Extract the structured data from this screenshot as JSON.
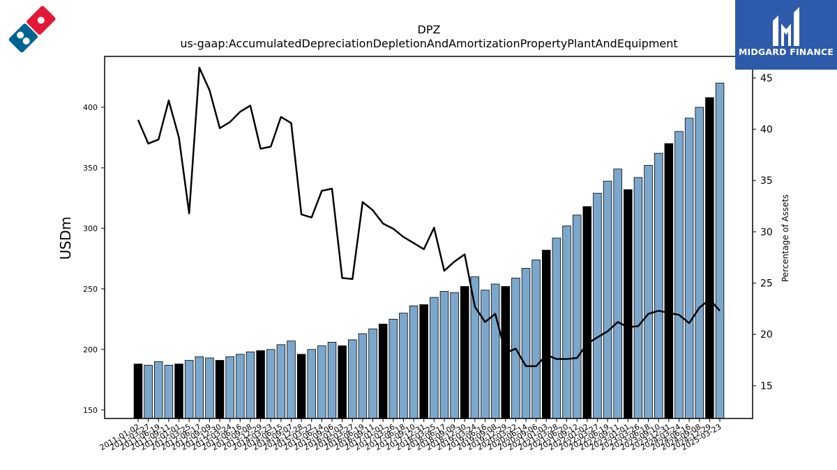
{
  "branding": {
    "company_logo_icon": "dominos-domino-logo-icon",
    "publisher_name": "MIDGARD FINANCE",
    "publisher_logo_icon": "midgard-finance-m-logo-icon",
    "colors": {
      "publisher_bg": "#2e5aab",
      "domino_red": "#e31837",
      "domino_blue": "#006491"
    }
  },
  "chart_data": {
    "type": "bar",
    "title": "DPZ",
    "subtitle": "us-gaap:AccumulatedDepreciationDepletionAndAmortizationPropertyPlantAndEquipment",
    "ylabel": "USDm",
    "y2label": "Percentage of Assets",
    "ylim": [
      143,
      442
    ],
    "y2lim": [
      11.8,
      47.1
    ],
    "yticks": [
      150,
      200,
      250,
      300,
      350,
      400
    ],
    "y2ticks": [
      15,
      20,
      25,
      30,
      35,
      40,
      45
    ],
    "colors": {
      "bar": "#7ba7cc",
      "bar_highlight": "#000000",
      "line": "#000000"
    },
    "x_tick_labels": [
      "2011-01-02",
      "2011-03-27",
      "2011-06-19",
      "2011-09-11",
      "2012-01-01",
      "2012-03-25",
      "2012-06-17",
      "2012-09-09",
      "2012-12-30",
      "2013-03-24",
      "2013-06-16",
      "2013-09-08",
      "2013-12-29",
      "2014-03-23",
      "2014-06-15",
      "2014-09-07",
      "2014-12-28",
      "2015-03-22",
      "2015-06-14",
      "2015-09-06",
      "2016-01-03",
      "2016-03-27",
      "2016-06-19",
      "2016-09-11",
      "2017-01-01",
      "2017-03-26",
      "2017-06-18",
      "2017-09-10",
      "2017-12-31",
      "2018-03-25",
      "2018-06-17",
      "2018-09-09",
      "2018-12-30",
      "2019-03-24",
      "2019-06-16",
      "2019-09-08",
      "2019-12-29",
      "2020-03-22",
      "2020-06-14",
      "2020-09-06",
      "2021-01-03",
      "2021-03-28",
      "2021-06-20",
      "2021-09-12",
      "2022-01-02",
      "2022-03-27",
      "2022-06-19",
      "2022-09-11",
      "2023-01-01",
      "2023-03-26",
      "2023-06-18",
      "2023-09-10",
      "2023-12-31",
      "2024-03-24",
      "2024-06-16",
      "2024-09-08",
      "2024-12-29",
      "2025-03-23"
    ],
    "series": [
      {
        "kind": "bar",
        "axis": "left",
        "values": [
          188,
          187,
          190,
          187,
          188,
          191,
          194,
          193,
          191,
          194,
          196,
          198,
          199,
          200,
          204,
          207,
          196,
          200,
          203,
          206,
          203,
          208,
          213,
          217,
          221,
          225,
          230,
          236,
          237,
          243,
          248,
          247,
          252,
          260,
          249,
          254,
          252,
          259,
          267,
          274,
          282,
          292,
          302,
          311,
          318,
          329,
          339,
          349,
          332,
          342,
          352,
          362,
          370,
          380,
          391,
          400,
          408,
          420
        ],
        "highlight": [
          true,
          false,
          false,
          false,
          true,
          false,
          false,
          false,
          true,
          false,
          false,
          false,
          true,
          false,
          false,
          false,
          true,
          false,
          false,
          false,
          true,
          false,
          false,
          false,
          true,
          false,
          false,
          false,
          true,
          false,
          false,
          false,
          true,
          false,
          false,
          false,
          true,
          false,
          false,
          false,
          true,
          false,
          false,
          false,
          true,
          false,
          false,
          false,
          true,
          false,
          false,
          false,
          true,
          false,
          false,
          false,
          true,
          false
        ]
      },
      {
        "kind": "line",
        "axis": "right",
        "values": [
          40.9,
          38.6,
          39.0,
          42.8,
          39.2,
          31.8,
          46.0,
          43.8,
          40.1,
          40.7,
          41.7,
          42.3,
          38.1,
          38.3,
          41.2,
          40.6,
          31.7,
          31.4,
          34.0,
          34.2,
          25.5,
          25.4,
          32.9,
          32.1,
          30.8,
          30.3,
          29.5,
          28.9,
          28.3,
          30.4,
          26.2,
          27.1,
          27.8,
          22.7,
          21.2,
          22.0,
          18.2,
          18.6,
          16.9,
          16.9,
          18.0,
          17.6,
          17.6,
          17.7,
          19.1,
          19.7,
          20.3,
          21.2,
          20.7,
          20.8,
          22.0,
          22.3,
          22.1,
          21.9,
          21.1,
          22.6,
          23.4,
          22.3
        ]
      }
    ]
  }
}
